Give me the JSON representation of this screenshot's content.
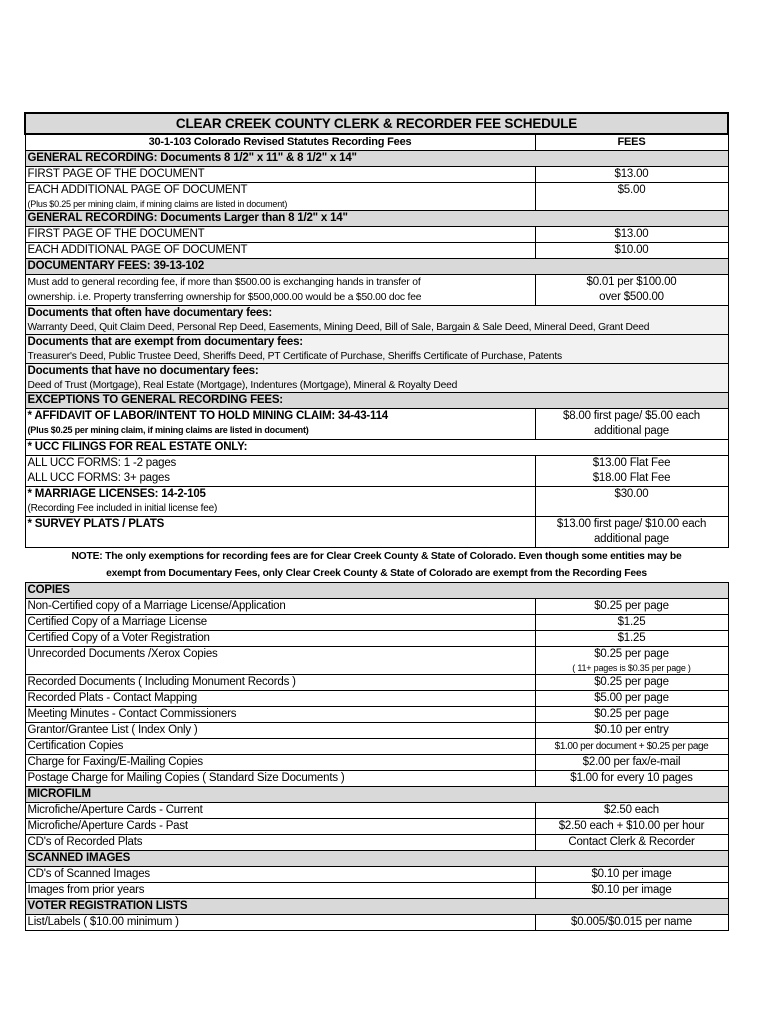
{
  "rows": [
    {
      "type": "title",
      "text": "CLEAR CREEK COUNTY CLERK & RECORDER FEE SCHEDULE"
    },
    {
      "type": "header",
      "desc": "30-1-103 Colorado Revised Statutes Recording Fees",
      "fee": "FEES"
    },
    {
      "type": "section",
      "text": "GENERAL RECORDING: Documents 8 1/2\" x 11\" & 8 1/2\" x 14\""
    },
    {
      "type": "item",
      "desc": [
        "FIRST PAGE OF THE DOCUMENT"
      ],
      "fee": [
        "$13.00"
      ]
    },
    {
      "type": "item",
      "desc": [
        "EACH ADDITIONAL PAGE OF DOCUMENT"
      ],
      "note": "(Plus $0.25 per mining claim, if mining claims are listed in document)",
      "fee": [
        "$5.00"
      ]
    },
    {
      "type": "section",
      "text": "GENERAL RECORDING: Documents Larger than 8 1/2\" x 14\""
    },
    {
      "type": "item",
      "desc": [
        "FIRST PAGE OF THE DOCUMENT"
      ],
      "fee": [
        "$13.00"
      ]
    },
    {
      "type": "item",
      "desc": [
        "EACH ADDITIONAL PAGE OF DOCUMENT"
      ],
      "fee": [
        "$10.00"
      ]
    },
    {
      "type": "section",
      "text": "DOCUMENTARY FEES: 39-13-102"
    },
    {
      "type": "item",
      "small": true,
      "desc": [
        "Must add to general recording fee, if more than $500.00 is exchanging hands in transfer of",
        "ownership. i.e. Property transferring ownership for $500,000.00 would be a $50.00 doc fee"
      ],
      "fee": [
        "$0.01 per $100.00",
        "over $500.00"
      ]
    },
    {
      "type": "subhead",
      "text": "Documents that often have documentary fees:"
    },
    {
      "type": "list",
      "text": "Warranty Deed, Quit Claim Deed, Personal Rep Deed, Easements, Mining Deed, Bill of Sale, Bargain & Sale Deed, Mineral Deed, Grant Deed"
    },
    {
      "type": "subhead",
      "text": "Documents that are exempt from documentary fees:"
    },
    {
      "type": "list",
      "text": "Treasurer's Deed, Public Trustee Deed, Sheriffs Deed, PT Certificate of Purchase, Sheriffs Certificate of Purchase, Patents"
    },
    {
      "type": "subhead",
      "text": "Documents that have no documentary fees:"
    },
    {
      "type": "list",
      "text": "Deed of Trust (Mortgage), Real Estate (Mortgage), Indentures (Mortgage), Mineral & Royalty Deed"
    },
    {
      "type": "section",
      "text": "EXCEPTIONS TO GENERAL RECORDING FEES:"
    },
    {
      "type": "item",
      "bold": true,
      "desc": [
        "* AFFIDAVIT OF LABOR/INTENT TO HOLD MINING CLAIM: 34-43-114"
      ],
      "note": "(Plus $0.25 per mining claim, if mining claims are listed in document)",
      "fee": [
        "$8.00 first page/ $5.00 each",
        "additional page"
      ]
    },
    {
      "type": "item",
      "bold": true,
      "desc": [
        "* UCC FILINGS FOR REAL ESTATE ONLY:"
      ],
      "fee": []
    },
    {
      "type": "item",
      "desc": [
        "ALL UCC FORMS:  1 -2 pages",
        "ALL UCC FORMS:   3+ pages"
      ],
      "fee": [
        "$13.00 Flat Fee",
        "$18.00 Flat Fee"
      ]
    },
    {
      "type": "item",
      "bold": true,
      "desc": [
        "* MARRIAGE LICENSES: 14-2-105"
      ],
      "note2": "(Recording Fee included in initial license fee)",
      "fee": [
        "$30.00"
      ]
    },
    {
      "type": "item",
      "bold": true,
      "desc": [
        "* SURVEY PLATS / PLATS",
        ""
      ],
      "fee": [
        "$13.00 first page/ $10.00 each",
        "additional page"
      ]
    },
    {
      "type": "note",
      "lines": [
        "NOTE: The only exemptions for recording fees are for Clear Creek County & State of Colorado. Even though some entities may be",
        "exempt from Documentary Fees, only Clear Creek County & State of Colorado are exempt from the Recording Fees"
      ]
    },
    {
      "type": "section",
      "text": "COPIES"
    },
    {
      "type": "item",
      "desc": [
        "Non-Certified copy of a Marriage License/Application"
      ],
      "fee": [
        "$0.25 per page"
      ]
    },
    {
      "type": "item",
      "desc": [
        "Certified Copy of a Marriage License"
      ],
      "fee": [
        "$1.25"
      ]
    },
    {
      "type": "item",
      "desc": [
        "Certified Copy of a Voter Registration"
      ],
      "fee": [
        "$1.25"
      ]
    },
    {
      "type": "item",
      "desc": [
        "Unrecorded Documents /Xerox Copies"
      ],
      "fee": [
        "$0.25 per page"
      ],
      "fee_note": "( 11+ pages is $0.35 per page )"
    },
    {
      "type": "item",
      "desc": [
        "Recorded Documents ( Including Monument Records )"
      ],
      "fee": [
        "$0.25 per page"
      ]
    },
    {
      "type": "item",
      "desc": [
        "Recorded Plats - Contact Mapping"
      ],
      "fee": [
        "$5.00 per page"
      ]
    },
    {
      "type": "item",
      "desc": [
        "Meeting Minutes - Contact Commissioners"
      ],
      "fee": [
        "$0.25 per page"
      ]
    },
    {
      "type": "item",
      "desc": [
        "Grantor/Grantee List ( Index Only )"
      ],
      "fee": [
        "$0.10 per entry"
      ]
    },
    {
      "type": "item",
      "desc": [
        "Certification Copies"
      ],
      "fee": [
        "$1.00 per document + $0.25 per page"
      ],
      "fee_small": true
    },
    {
      "type": "item",
      "desc": [
        "Charge for Faxing/E-Mailing Copies"
      ],
      "fee": [
        "$2.00 per fax/e-mail"
      ]
    },
    {
      "type": "item",
      "desc": [
        "Postage Charge for Mailing Copies ( Standard Size Documents )"
      ],
      "fee": [
        "$1.00 for every 10 pages"
      ]
    },
    {
      "type": "section",
      "text": "MICROFILM"
    },
    {
      "type": "item",
      "desc": [
        "Microfiche/Aperture Cards - Current"
      ],
      "fee": [
        "$2.50 each"
      ]
    },
    {
      "type": "item",
      "desc": [
        "Microfiche/Aperture Cards - Past"
      ],
      "fee": [
        "$2.50 each + $10.00 per hour"
      ]
    },
    {
      "type": "item",
      "desc": [
        "CD's of Recorded Plats"
      ],
      "fee": [
        "Contact Clerk & Recorder"
      ]
    },
    {
      "type": "section",
      "text": "SCANNED IMAGES"
    },
    {
      "type": "item",
      "desc": [
        "CD's of Scanned Images"
      ],
      "fee": [
        "$0.10 per image"
      ]
    },
    {
      "type": "item",
      "desc": [
        "Images from prior years"
      ],
      "fee": [
        "$0.10 per image"
      ]
    },
    {
      "type": "section",
      "text": "VOTER REGISTRATION LISTS"
    },
    {
      "type": "item",
      "flush": true,
      "desc": [
        "List/Labels ( $10.00 minimum )"
      ],
      "fee": [
        "$0.005/$0.015 per name"
      ]
    }
  ]
}
